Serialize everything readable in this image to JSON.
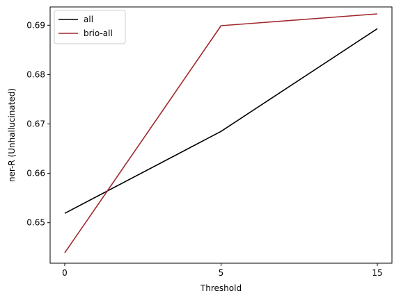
{
  "chart_data": {
    "type": "line",
    "title": "",
    "xlabel": "Threshold",
    "ylabel": "ner-R (Unhallucinated)",
    "categories": [
      "0",
      "5",
      "15"
    ],
    "ylim": [
      0.6418,
      0.6937
    ],
    "yticks": [
      "0.65",
      "0.66",
      "0.67",
      "0.68",
      "0.69"
    ],
    "grid": false,
    "legend_position": "top-left",
    "series": [
      {
        "name": "all",
        "color": "#000000",
        "values": [
          0.6519,
          0.6685,
          0.6893
        ]
      },
      {
        "name": "brio-all",
        "color": "#a0282d",
        "values": [
          0.6439,
          0.6899,
          0.6923
        ]
      }
    ]
  }
}
